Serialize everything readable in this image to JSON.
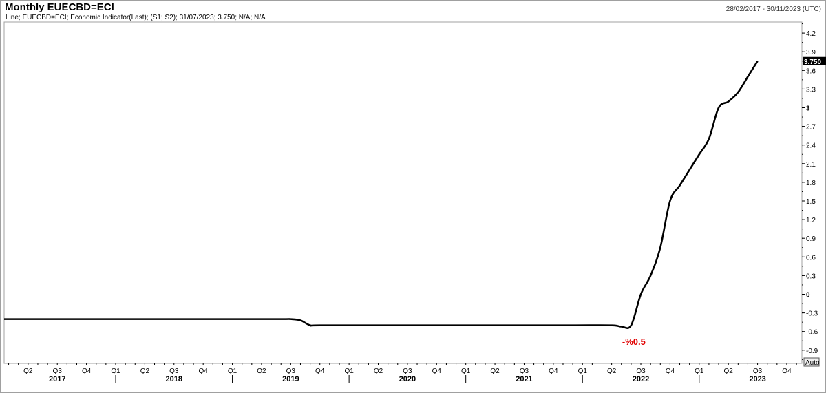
{
  "header": {
    "title": "Monthly EUECBD=ECI",
    "date_range": "28/02/2017 - 30/11/2023 (UTC)",
    "legend": "Line; EUECBD=ECI; Economic Indicator(Last); (S1; S2); 31/07/2023; 3.750; N/A; N/A"
  },
  "auto_button": "Auto",
  "chart_data": {
    "type": "line",
    "ylim": [
      -1.05,
      4.35
    ],
    "yticks": [
      "4.2",
      "3.9",
      "3.6",
      "3.3",
      "3",
      "2.7",
      "2.4",
      "2.1",
      "1.8",
      "1.5",
      "1.2",
      "0.9",
      "0.6",
      "0.3",
      "0",
      "-0.3",
      "-0.6",
      "-0.9"
    ],
    "ytick_values": [
      4.2,
      3.9,
      3.6,
      3.3,
      3,
      2.7,
      2.4,
      2.1,
      1.8,
      1.5,
      1.2,
      0.9,
      0.6,
      0.3,
      0,
      -0.3,
      -0.6,
      -0.9
    ],
    "bold_yticks": [
      "3",
      "0"
    ],
    "last_value_label": "3.750",
    "last_value": 3.75,
    "annotation": {
      "text": "-%0.5",
      "date": "2022-06",
      "color": "#e00000"
    },
    "quarter_ticks": [
      {
        "label": "Q2",
        "date": "2017-04"
      },
      {
        "label": "Q3",
        "date": "2017-07"
      },
      {
        "label": "Q4",
        "date": "2017-10"
      },
      {
        "label": "Q1",
        "date": "2018-01"
      },
      {
        "label": "Q2",
        "date": "2018-04"
      },
      {
        "label": "Q3",
        "date": "2018-07"
      },
      {
        "label": "Q4",
        "date": "2018-10"
      },
      {
        "label": "Q1",
        "date": "2019-01"
      },
      {
        "label": "Q2",
        "date": "2019-04"
      },
      {
        "label": "Q3",
        "date": "2019-07"
      },
      {
        "label": "Q4",
        "date": "2019-10"
      },
      {
        "label": "Q1",
        "date": "2020-01"
      },
      {
        "label": "Q2",
        "date": "2020-04"
      },
      {
        "label": "Q3",
        "date": "2020-07"
      },
      {
        "label": "Q4",
        "date": "2020-10"
      },
      {
        "label": "Q1",
        "date": "2021-01"
      },
      {
        "label": "Q2",
        "date": "2021-04"
      },
      {
        "label": "Q3",
        "date": "2021-07"
      },
      {
        "label": "Q4",
        "date": "2021-10"
      },
      {
        "label": "Q1",
        "date": "2022-01"
      },
      {
        "label": "Q2",
        "date": "2022-04"
      },
      {
        "label": "Q3",
        "date": "2022-07"
      },
      {
        "label": "Q4",
        "date": "2022-10"
      },
      {
        "label": "Q1",
        "date": "2023-01"
      },
      {
        "label": "Q2",
        "date": "2023-04"
      },
      {
        "label": "Q3",
        "date": "2023-07"
      },
      {
        "label": "Q4",
        "date": "2023-10"
      }
    ],
    "year_labels": [
      {
        "label": "2017",
        "date": "2017-07"
      },
      {
        "label": "2018",
        "date": "2018-07"
      },
      {
        "label": "2019",
        "date": "2019-07"
      },
      {
        "label": "2020",
        "date": "2020-07"
      },
      {
        "label": "2021",
        "date": "2021-07"
      },
      {
        "label": "2022",
        "date": "2022-07"
      },
      {
        "label": "2023",
        "date": "2023-07"
      }
    ],
    "series": [
      {
        "color": "#000000",
        "points": [
          [
            "2017-01",
            -0.4
          ],
          [
            "2017-06",
            -0.4
          ],
          [
            "2017-12",
            -0.4
          ],
          [
            "2018-06",
            -0.4
          ],
          [
            "2018-12",
            -0.4
          ],
          [
            "2019-06",
            -0.4
          ],
          [
            "2019-07",
            -0.4
          ],
          [
            "2019-08",
            -0.42
          ],
          [
            "2019-09",
            -0.5
          ],
          [
            "2019-10",
            -0.5
          ],
          [
            "2020-06",
            -0.5
          ],
          [
            "2020-12",
            -0.5
          ],
          [
            "2021-06",
            -0.5
          ],
          [
            "2021-12",
            -0.5
          ],
          [
            "2022-04",
            -0.5
          ],
          [
            "2022-05",
            -0.52
          ],
          [
            "2022-06",
            -0.5
          ],
          [
            "2022-07",
            0.0
          ],
          [
            "2022-08",
            0.3
          ],
          [
            "2022-09",
            0.75
          ],
          [
            "2022-10",
            1.5
          ],
          [
            "2022-11",
            1.75
          ],
          [
            "2022-12",
            2.0
          ],
          [
            "2023-01",
            2.25
          ],
          [
            "2023-02",
            2.5
          ],
          [
            "2023-03",
            3.0
          ],
          [
            "2023-04",
            3.1
          ],
          [
            "2023-05",
            3.25
          ],
          [
            "2023-06",
            3.5
          ],
          [
            "2023-07",
            3.75
          ]
        ]
      }
    ]
  }
}
